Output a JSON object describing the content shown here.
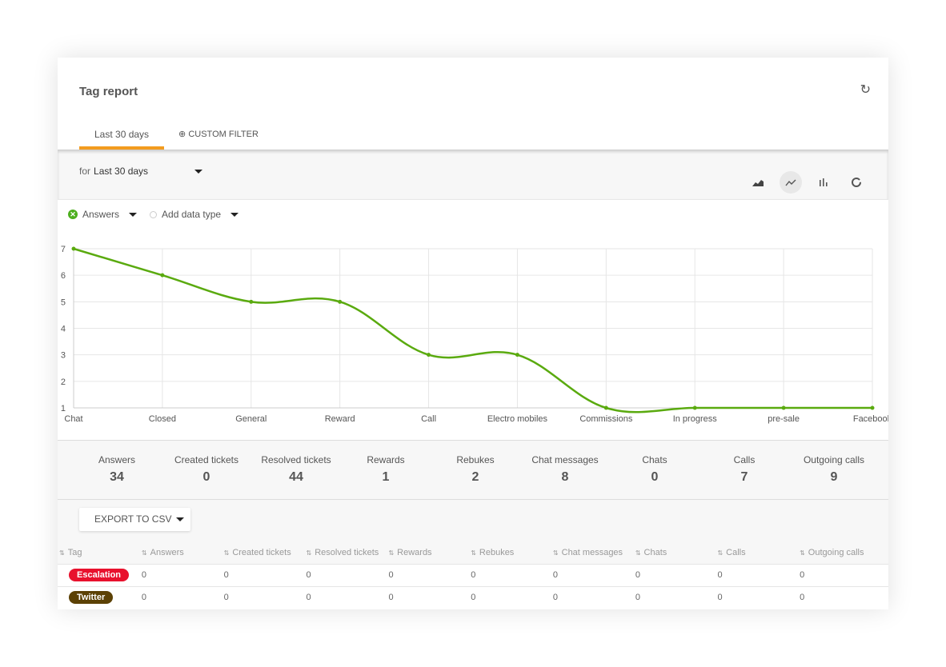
{
  "header": {
    "title": "Tag report",
    "refresh_icon": "refresh-icon"
  },
  "tabs": [
    {
      "label": "Last 30 days",
      "active": true
    },
    {
      "label": "CUSTOM FILTER",
      "icon": "plus-circle-icon"
    }
  ],
  "filter": {
    "prefix": "for",
    "value": "Last 30 days"
  },
  "chart_types": [
    {
      "icon": "area-chart-icon"
    },
    {
      "icon": "line-chart-icon",
      "active": true
    },
    {
      "icon": "bar-chart-icon"
    },
    {
      "icon": "donut-chart-icon"
    }
  ],
  "series_selector": {
    "selected": "Answers",
    "add_label": "Add data type"
  },
  "colors": {
    "series": "#5aaa0f",
    "tab_accent": "#f39c1f"
  },
  "chart_data": {
    "type": "line",
    "smooth": true,
    "categories": [
      "Chat",
      "Closed",
      "General",
      "Reward",
      "Call",
      "Electro mobiles",
      "Commissions",
      "In progress",
      "pre-sale",
      "Facebook"
    ],
    "series": [
      {
        "name": "Answers",
        "values": [
          7,
          6,
          5,
          5,
          3,
          3,
          1,
          1,
          1,
          1
        ]
      }
    ],
    "ylim": [
      1,
      7
    ],
    "yticks": [
      1,
      2,
      3,
      4,
      5,
      6,
      7
    ],
    "grid": true
  },
  "stats": [
    {
      "label": "Answers",
      "value": "34"
    },
    {
      "label": "Created tickets",
      "value": "0"
    },
    {
      "label": "Resolved tickets",
      "value": "44"
    },
    {
      "label": "Rewards",
      "value": "1"
    },
    {
      "label": "Rebukes",
      "value": "2"
    },
    {
      "label": "Chat messages",
      "value": "8"
    },
    {
      "label": "Chats",
      "value": "0"
    },
    {
      "label": "Calls",
      "value": "7"
    },
    {
      "label": "Outgoing calls",
      "value": "9"
    }
  ],
  "export_label": "EXPORT TO CSV",
  "table": {
    "columns": [
      "Tag",
      "Answers",
      "Created tickets",
      "Resolved tickets",
      "Rewards",
      "Rebukes",
      "Chat messages",
      "Chats",
      "Calls",
      "Outgoing calls"
    ],
    "rows": [
      {
        "tag": "Escalation",
        "color": "#e8112d",
        "values": [
          "0",
          "0",
          "0",
          "0",
          "0",
          "0",
          "0",
          "0",
          "0"
        ]
      },
      {
        "tag": "Twitter",
        "color": "#5c4105",
        "values": [
          "0",
          "0",
          "0",
          "0",
          "0",
          "0",
          "0",
          "0",
          "0"
        ]
      }
    ]
  }
}
